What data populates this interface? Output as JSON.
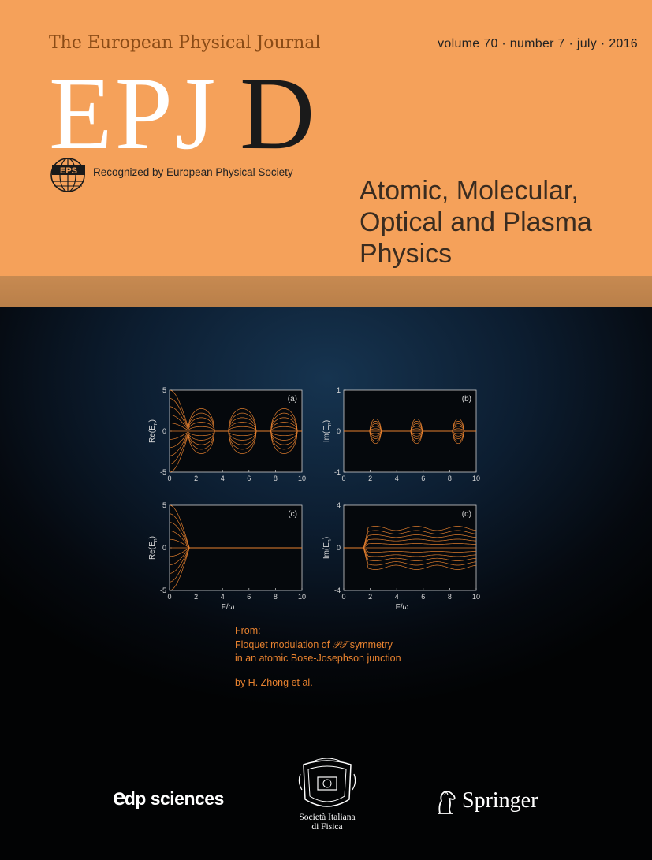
{
  "header": {
    "journal_name": "The European Physical Journal",
    "volume_info": "volume 70 · number 7 · july · 2016",
    "title_epj": "EPJ",
    "title_letter": "D",
    "society_logo": "EPS",
    "society_text": "Recognized by European Physical Society",
    "subject_lines": [
      "Atomic, Molecular,",
      "Optical and Plasma",
      "Physics"
    ]
  },
  "colors": {
    "header_bg": "#f5a15a",
    "band_bg": "#c78a51",
    "dark_bg": "#0c1d30",
    "accent_orange": "#e8822f",
    "journal_brown": "#8a4b16"
  },
  "chart_data": [
    {
      "type": "line",
      "panel_label": "(a)",
      "ylabel": "Re(E",
      "ylabel_sub": "n",
      "xlabel": "",
      "xlim": [
        0,
        10
      ],
      "ylim": [
        -5,
        5
      ],
      "x_ticks": [
        "0",
        "2",
        "4",
        "6",
        "8",
        "10"
      ],
      "y_ticks": [
        "5",
        "0",
        "-5"
      ],
      "description_series": {
        "levels": 11,
        "amplitude_max": 5,
        "bubble_centers": [
          2.4,
          5.5,
          8.65
        ]
      }
    },
    {
      "type": "line",
      "panel_label": "(b)",
      "ylabel": "Im(E",
      "ylabel_sub": "n",
      "xlabel": "",
      "xlim": [
        0,
        10
      ],
      "ylim": [
        -1,
        1
      ],
      "x_ticks": [
        "0",
        "2",
        "4",
        "6",
        "8",
        "10"
      ],
      "y_ticks": [
        "1",
        "0",
        "-1"
      ],
      "description_series": {
        "levels": 11,
        "amplitude_max": 0.55,
        "bubble_centers": [
          2.4,
          5.5,
          8.65
        ]
      }
    },
    {
      "type": "line",
      "panel_label": "(c)",
      "ylabel": "Re(E",
      "ylabel_sub": "n",
      "xlabel": "F/ω",
      "xlim": [
        0,
        10
      ],
      "ylim": [
        -5,
        5
      ],
      "x_ticks": [
        "0",
        "2",
        "4",
        "6",
        "8",
        "10"
      ],
      "y_ticks": [
        "5",
        "0",
        "-5"
      ],
      "description_series": {
        "levels": 11,
        "amplitude_max": 5,
        "collapse_at": 1.5
      }
    },
    {
      "type": "line",
      "panel_label": "(d)",
      "ylabel": "Im(E",
      "ylabel_sub": "n",
      "xlabel": "F/ω",
      "xlim": [
        0,
        10
      ],
      "ylim": [
        -4,
        4
      ],
      "x_ticks": [
        "0",
        "2",
        "4",
        "6",
        "8",
        "10"
      ],
      "y_ticks": [
        "4",
        "0",
        "-4"
      ],
      "description_series": {
        "levels": 11,
        "amplitude_max": 3,
        "onset_at": 1.5
      }
    }
  ],
  "caption": {
    "from_label": "From:",
    "title_line1_prefix": "Floquet modulation of ",
    "title_line1_pt": "𝒫𝒯",
    "title_line1_suffix": " symmetry",
    "title_line2": "in an atomic Bose-Josephson junction",
    "authors": "by H. Zhong et al."
  },
  "publishers": {
    "edp_e": "e",
    "edp_rest": "dp",
    "edp_sciences": "sciences",
    "sif_line1": "Società Italiana",
    "sif_line2": "di Fisica",
    "springer": "Springer"
  }
}
